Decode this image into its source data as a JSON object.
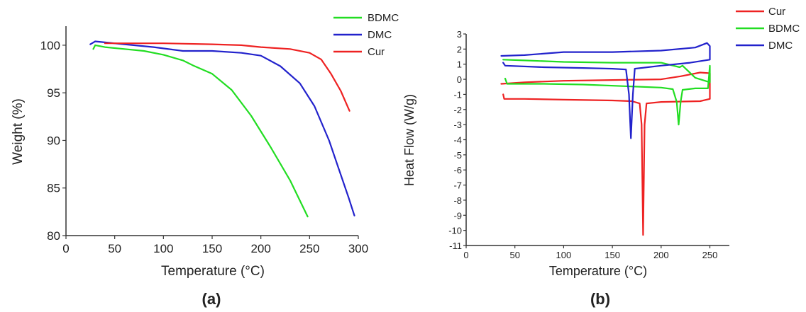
{
  "chart_data": [
    {
      "type": "line",
      "panel_label": "(a)",
      "xlabel": "Temperature (°C)",
      "ylabel": "Weight (%)",
      "xlim": [
        0,
        300
      ],
      "ylim": [
        80,
        102
      ],
      "xticks": [
        0,
        50,
        100,
        150,
        200,
        250,
        300
      ],
      "yticks": [
        80,
        85,
        90,
        95,
        100
      ],
      "grid": false,
      "legend_position": "top-right",
      "series": [
        {
          "name": "BDMC",
          "color": "#22dd22",
          "points": [
            [
              28,
              99.6
            ],
            [
              30,
              100.0
            ],
            [
              40,
              99.8
            ],
            [
              60,
              99.6
            ],
            [
              80,
              99.4
            ],
            [
              100,
              99.0
            ],
            [
              120,
              98.4
            ],
            [
              130,
              97.9
            ],
            [
              150,
              97.0
            ],
            [
              170,
              95.3
            ],
            [
              190,
              92.6
            ],
            [
              210,
              89.3
            ],
            [
              230,
              85.8
            ],
            [
              248,
              82.0
            ]
          ]
        },
        {
          "name": "DMC",
          "color": "#2222cc",
          "points": [
            [
              25,
              100.1
            ],
            [
              30,
              100.4
            ],
            [
              40,
              100.3
            ],
            [
              60,
              100.1
            ],
            [
              90,
              99.8
            ],
            [
              120,
              99.4
            ],
            [
              150,
              99.4
            ],
            [
              180,
              99.2
            ],
            [
              200,
              98.9
            ],
            [
              220,
              97.8
            ],
            [
              240,
              96.0
            ],
            [
              255,
              93.6
            ],
            [
              270,
              90.0
            ],
            [
              280,
              87.0
            ],
            [
              290,
              84.0
            ],
            [
              296,
              82.1
            ]
          ]
        },
        {
          "name": "Cur",
          "color": "#ee2222",
          "points": [
            [
              40,
              100.2
            ],
            [
              60,
              100.2
            ],
            [
              100,
              100.2
            ],
            [
              150,
              100.1
            ],
            [
              180,
              100.0
            ],
            [
              200,
              99.8
            ],
            [
              230,
              99.6
            ],
            [
              250,
              99.2
            ],
            [
              262,
              98.5
            ],
            [
              272,
              97.0
            ],
            [
              282,
              95.2
            ],
            [
              291,
              93.1
            ]
          ]
        }
      ]
    },
    {
      "type": "line",
      "panel_label": "(b)",
      "xlabel": "Temperature (°C)",
      "ylabel": "Heat Flow (W/g)",
      "xlim": [
        0,
        270
      ],
      "ylim": [
        -11,
        3
      ],
      "xticks": [
        0,
        50,
        100,
        150,
        200,
        250
      ],
      "yticks": [
        3,
        2,
        1,
        0,
        -1,
        -2,
        -3,
        -4,
        -5,
        -6,
        -7,
        -8,
        -9,
        -10,
        -11
      ],
      "grid": false,
      "legend_position": "top-right",
      "series": [
        {
          "name": "Cur",
          "color": "#ee2222",
          "points": [
            [
              38,
              -1.0
            ],
            [
              39,
              -1.3
            ],
            [
              60,
              -1.3
            ],
            [
              100,
              -1.35
            ],
            [
              150,
              -1.4
            ],
            [
              170,
              -1.45
            ],
            [
              178,
              -1.6
            ],
            [
              180,
              -3.0
            ],
            [
              181.5,
              -10.3
            ],
            [
              183,
              -3.0
            ],
            [
              185,
              -1.6
            ],
            [
              200,
              -1.5
            ],
            [
              240,
              -1.45
            ],
            [
              250,
              -1.3
            ],
            [
              250,
              0.4
            ],
            [
              240,
              0.45
            ],
            [
              220,
              0.2
            ],
            [
              200,
              0.0
            ],
            [
              150,
              -0.05
            ],
            [
              100,
              -0.1
            ],
            [
              60,
              -0.2
            ],
            [
              36,
              -0.3
            ]
          ]
        },
        {
          "name": "BDMC",
          "color": "#22dd22",
          "points": [
            [
              40,
              0.05
            ],
            [
              42,
              -0.3
            ],
            [
              80,
              -0.3
            ],
            [
              120,
              -0.35
            ],
            [
              160,
              -0.45
            ],
            [
              200,
              -0.55
            ],
            [
              212,
              -0.65
            ],
            [
              216,
              -1.5
            ],
            [
              218,
              -3.0
            ],
            [
              220,
              -1.5
            ],
            [
              222,
              -0.7
            ],
            [
              235,
              -0.6
            ],
            [
              248,
              -0.6
            ],
            [
              250,
              0.9
            ],
            [
              250,
              -0.2
            ],
            [
              235,
              0.1
            ],
            [
              222,
              0.9
            ],
            [
              219,
              0.8
            ],
            [
              200,
              1.1
            ],
            [
              150,
              1.1
            ],
            [
              100,
              1.15
            ],
            [
              60,
              1.25
            ],
            [
              38,
              1.3
            ]
          ]
        },
        {
          "name": "DMC",
          "color": "#2222cc",
          "points": [
            [
              38,
              1.1
            ],
            [
              40,
              0.9
            ],
            [
              80,
              0.8
            ],
            [
              120,
              0.75
            ],
            [
              150,
              0.7
            ],
            [
              164,
              0.65
            ],
            [
              167,
              -1.0
            ],
            [
              169,
              -3.9
            ],
            [
              171,
              -1.0
            ],
            [
              173,
              0.7
            ],
            [
              200,
              0.9
            ],
            [
              230,
              1.1
            ],
            [
              250,
              1.3
            ],
            [
              250,
              2.2
            ],
            [
              247,
              2.4
            ],
            [
              235,
              2.1
            ],
            [
              200,
              1.9
            ],
            [
              150,
              1.8
            ],
            [
              100,
              1.8
            ],
            [
              60,
              1.6
            ],
            [
              36,
              1.55
            ]
          ]
        }
      ]
    }
  ]
}
